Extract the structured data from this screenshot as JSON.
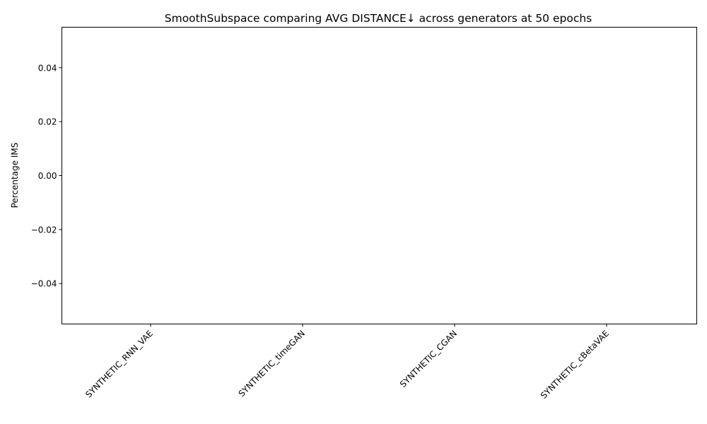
{
  "chart_data": {
    "type": "bar",
    "title": "SmoothSubspace comparing AVG DISTANCE↓  across generators at 50 epochs",
    "xlabel": "",
    "ylabel": "Percentage IMS",
    "categories": [
      "SYNTHETIC_RNN_VAE",
      "SYNTHETIC_timeGAN",
      "SYNTHETIC_CGAN",
      "SYNTHETIC_cBetaVAE"
    ],
    "values": [
      0,
      0,
      0,
      0
    ],
    "ylim": [
      -0.055,
      0.055
    ],
    "yticks": [
      0.04,
      0.02,
      0.0,
      -0.02,
      -0.04
    ],
    "ytick_labels": [
      "0.04",
      "0.02",
      "0.00",
      "−0.02",
      "−0.04"
    ],
    "grid": false,
    "legend": "none"
  }
}
